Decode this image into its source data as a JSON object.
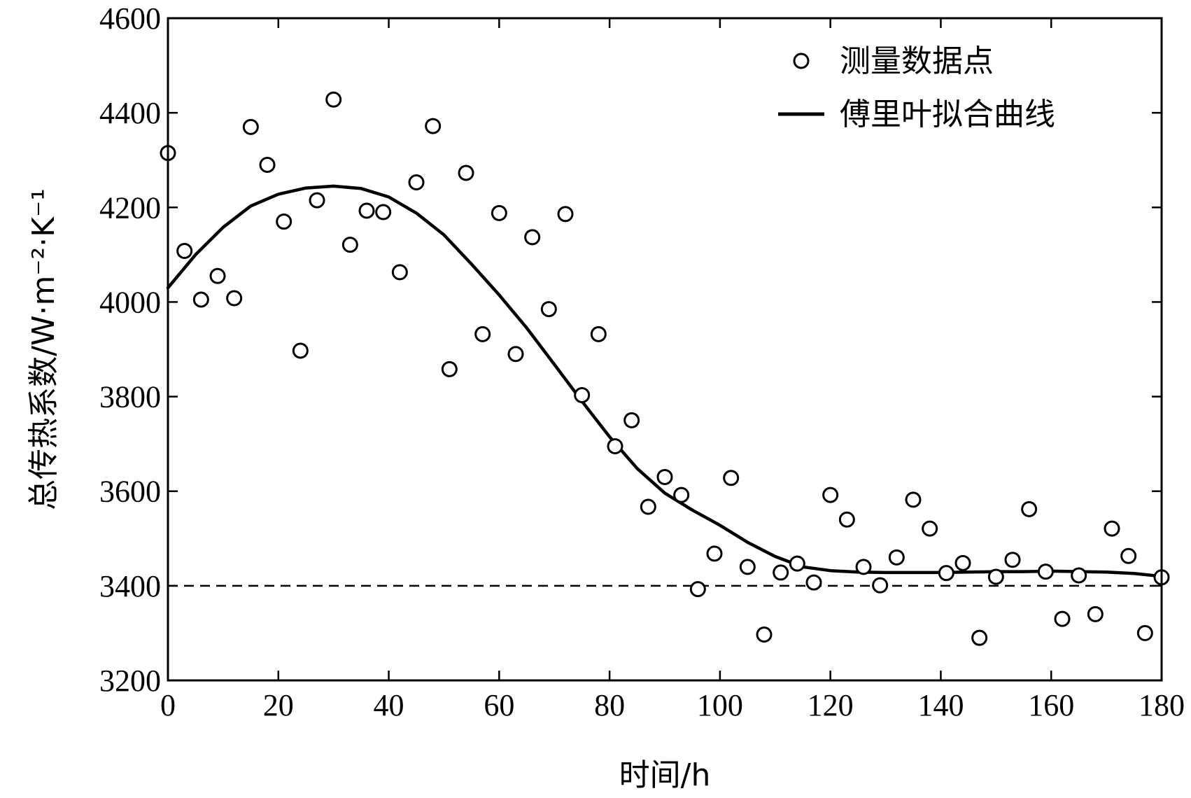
{
  "chart_data": {
    "type": "scatter",
    "title": "",
    "xlabel": "时间/h",
    "ylabel": "总传热系数/W·m⁻²·K⁻¹",
    "xlim": [
      0,
      180
    ],
    "ylim": [
      3200,
      4600
    ],
    "xticks": [
      0,
      20,
      40,
      60,
      80,
      100,
      120,
      140,
      160,
      180
    ],
    "yticks": [
      3200,
      3400,
      3600,
      3800,
      4000,
      4200,
      4400,
      4600
    ],
    "reference_line": {
      "y": 3400,
      "style": "dashed"
    },
    "legend_position": "top-right",
    "series": [
      {
        "name": "测量数据点",
        "kind": "markers",
        "marker": "open-circle",
        "x": [
          0,
          3,
          6,
          9,
          12,
          15,
          18,
          21,
          24,
          27,
          30,
          33,
          36,
          39,
          42,
          45,
          48,
          51,
          54,
          57,
          60,
          63,
          66,
          69,
          72,
          75,
          78,
          81,
          84,
          87,
          90,
          93,
          96,
          99,
          102,
          105,
          108,
          111,
          114,
          117,
          120,
          123,
          126,
          129,
          132,
          135,
          138,
          141,
          144,
          147,
          150,
          153,
          156,
          159,
          162,
          165,
          168,
          171,
          174,
          177,
          180
        ],
        "y": [
          4315,
          4108,
          4005,
          4055,
          4008,
          4370,
          4290,
          4170,
          3897,
          4215,
          4428,
          4121,
          4193,
          4190,
          4063,
          4253,
          4372,
          3858,
          4273,
          3932,
          4188,
          3890,
          4137,
          3985,
          4186,
          3803,
          3932,
          3695,
          3750,
          3567,
          3630,
          3592,
          3393,
          3468,
          3628,
          3440,
          3297,
          3428,
          3447,
          3407,
          3592,
          3540,
          3440,
          3401,
          3460,
          3582,
          3521,
          3427,
          3448,
          3290,
          3419,
          3455,
          3562,
          3430,
          3330,
          3422,
          3340,
          3521,
          3463,
          3300,
          3418
        ]
      },
      {
        "name": "傅里叶拟合曲线",
        "kind": "line",
        "x": [
          0,
          5,
          10,
          15,
          20,
          25,
          30,
          35,
          40,
          45,
          50,
          55,
          60,
          65,
          70,
          75,
          80,
          85,
          90,
          95,
          100,
          105,
          110,
          115,
          120,
          125,
          130,
          135,
          140,
          145,
          150,
          155,
          160,
          165,
          170,
          175,
          180
        ],
        "y": [
          4030,
          4100,
          4158,
          4203,
          4228,
          4241,
          4245,
          4240,
          4222,
          4188,
          4142,
          4080,
          4015,
          3945,
          3868,
          3790,
          3715,
          3648,
          3596,
          3560,
          3528,
          3492,
          3462,
          3440,
          3432,
          3429,
          3428,
          3428,
          3428,
          3429,
          3430,
          3430,
          3431,
          3430,
          3429,
          3426,
          3420
        ]
      }
    ]
  }
}
